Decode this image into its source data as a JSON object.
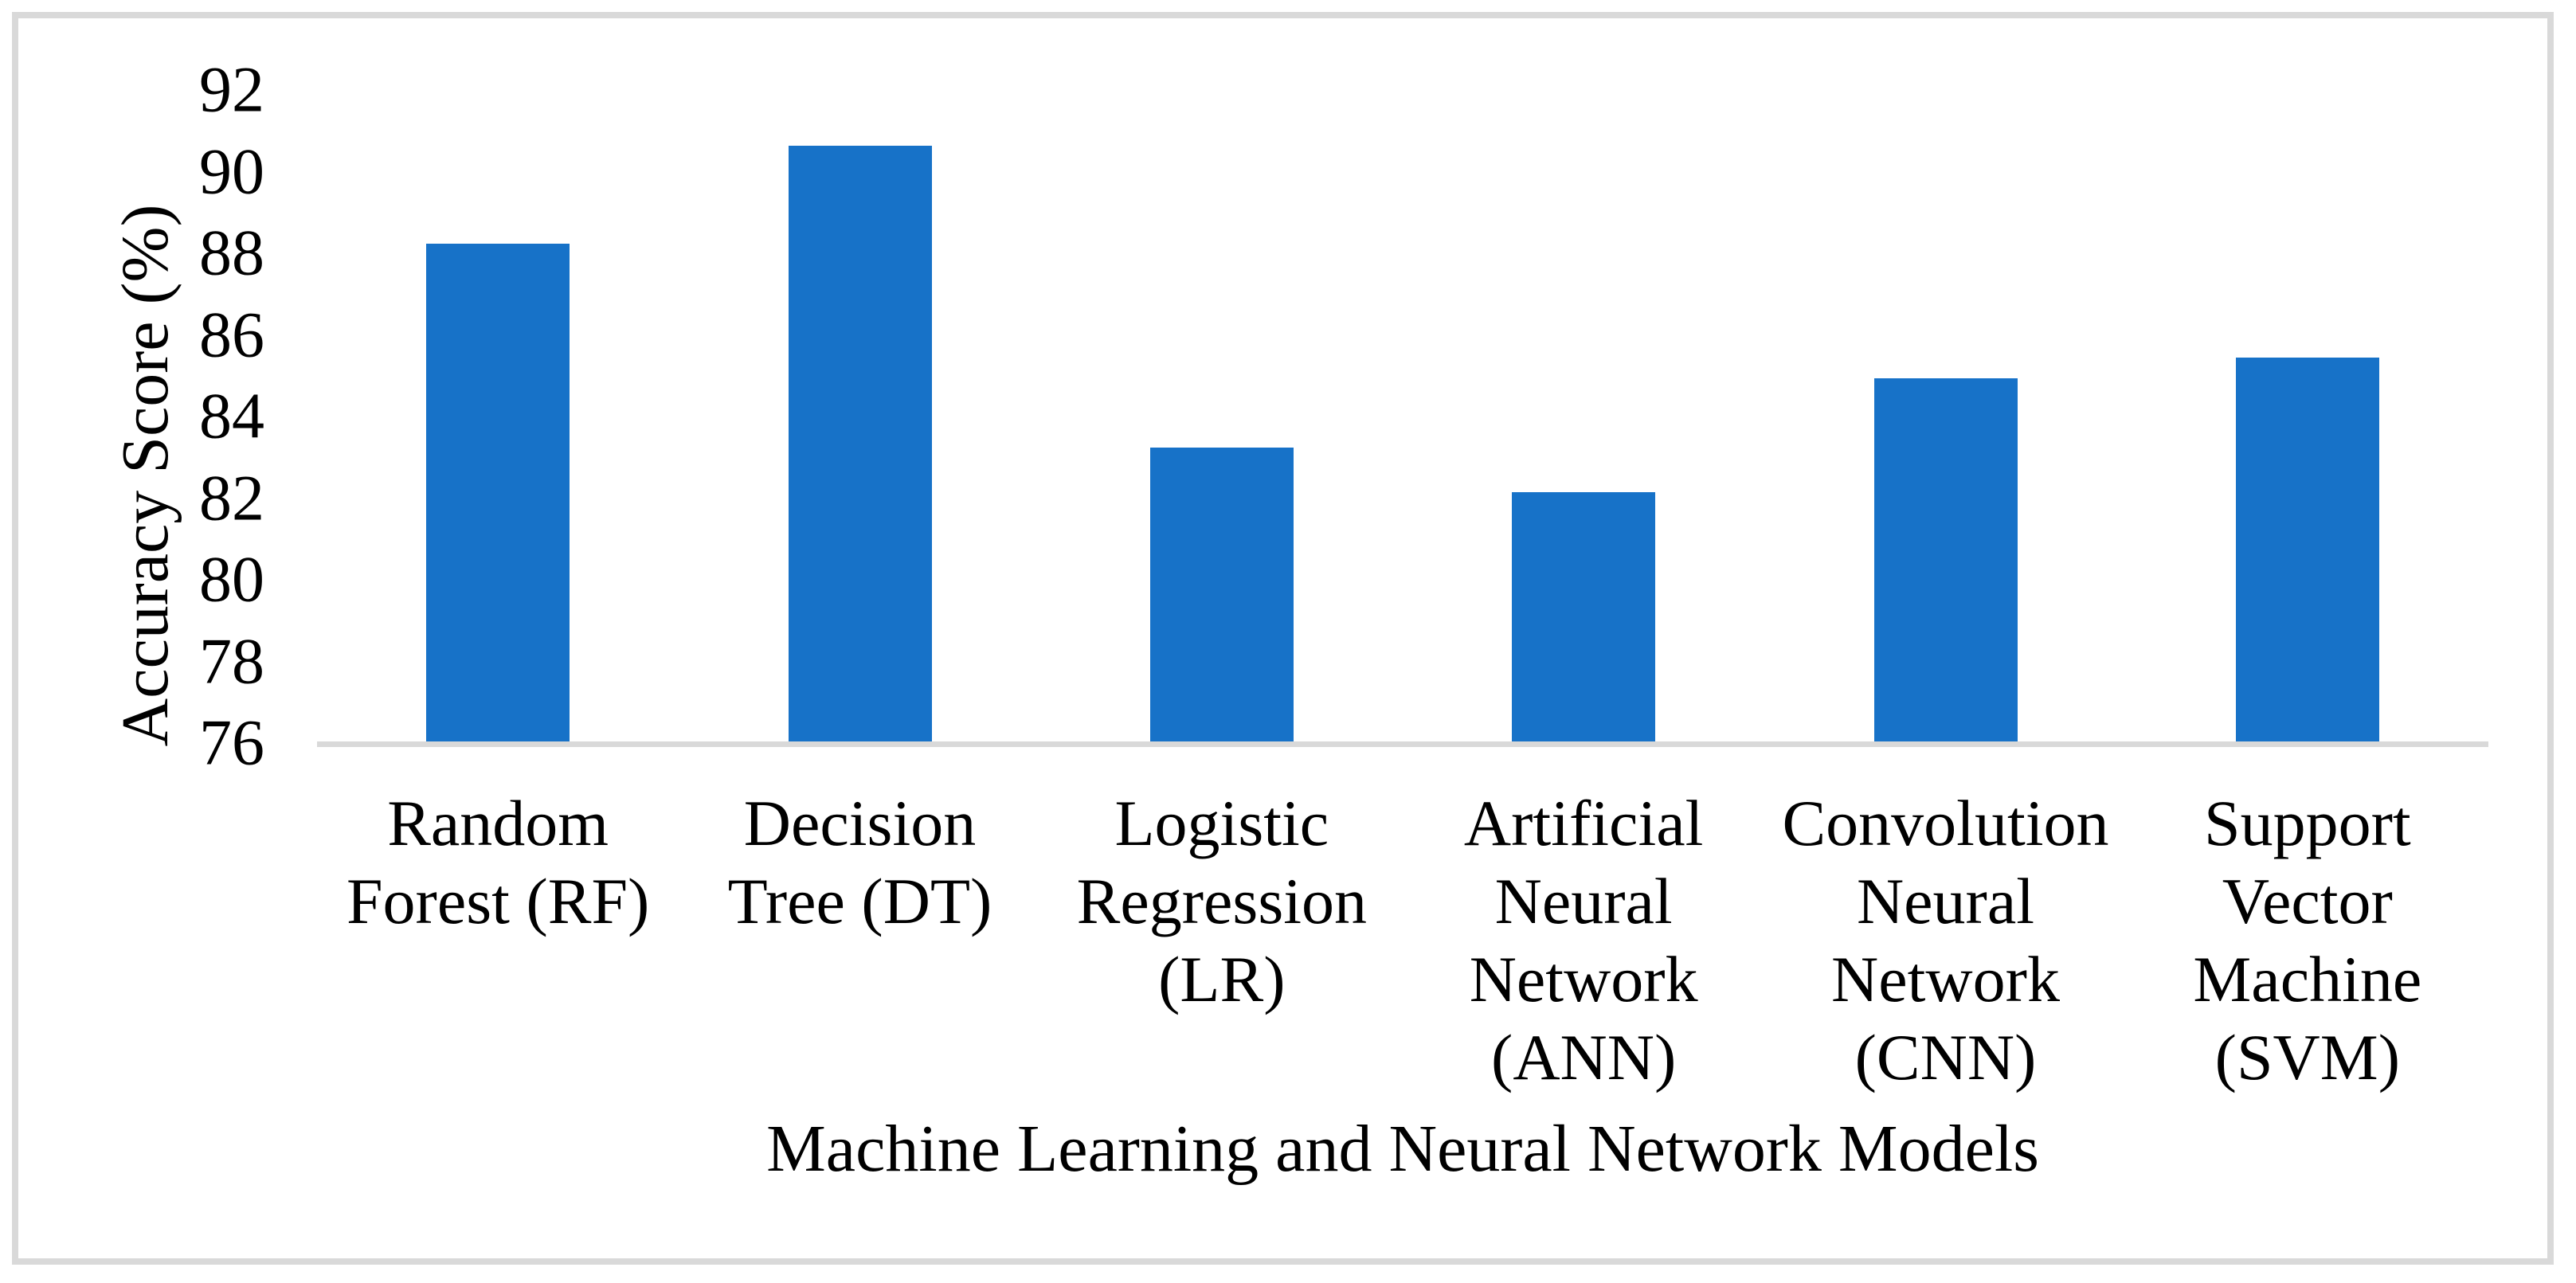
{
  "figure": {
    "background_color": "#FFFFFF",
    "border_color": "#D9D9D9",
    "text_color": "#000000"
  },
  "chart_data": {
    "type": "bar",
    "title": "",
    "categories": [
      "Random Forest (RF)",
      "Decision Tree (DT)",
      "Logistic Regression (LR)",
      "Artificial Neural Network (ANN)",
      "Convolution Neural Network (CNN)",
      "Support Vector Machine (SVM)"
    ],
    "category_label_lines": [
      [
        "Random",
        "Forest (RF)"
      ],
      [
        "Decision",
        "Tree (DT)"
      ],
      [
        "Logistic",
        "Regression",
        "(LR)"
      ],
      [
        "Artificial",
        "Neural",
        "Network",
        "(ANN)"
      ],
      [
        "Convolution",
        "Neural",
        "Network",
        "(CNN)"
      ],
      [
        "Support",
        "Vector",
        "Machine",
        "(SVM)"
      ]
    ],
    "values": [
      88.2,
      90.6,
      83.2,
      82.1,
      84.9,
      85.4
    ],
    "xlabel": "Machine Learning and Neural Network Models",
    "ylabel": "Accuracy Score (%)",
    "ylim": [
      76,
      92
    ],
    "ytick_step": 2,
    "yticks": [
      76,
      78,
      80,
      82,
      84,
      86,
      88,
      90,
      92
    ],
    "bar_color": "#1772C8",
    "axis_line_color": "#D9D9D9",
    "grid": false,
    "legend_position": "none"
  }
}
